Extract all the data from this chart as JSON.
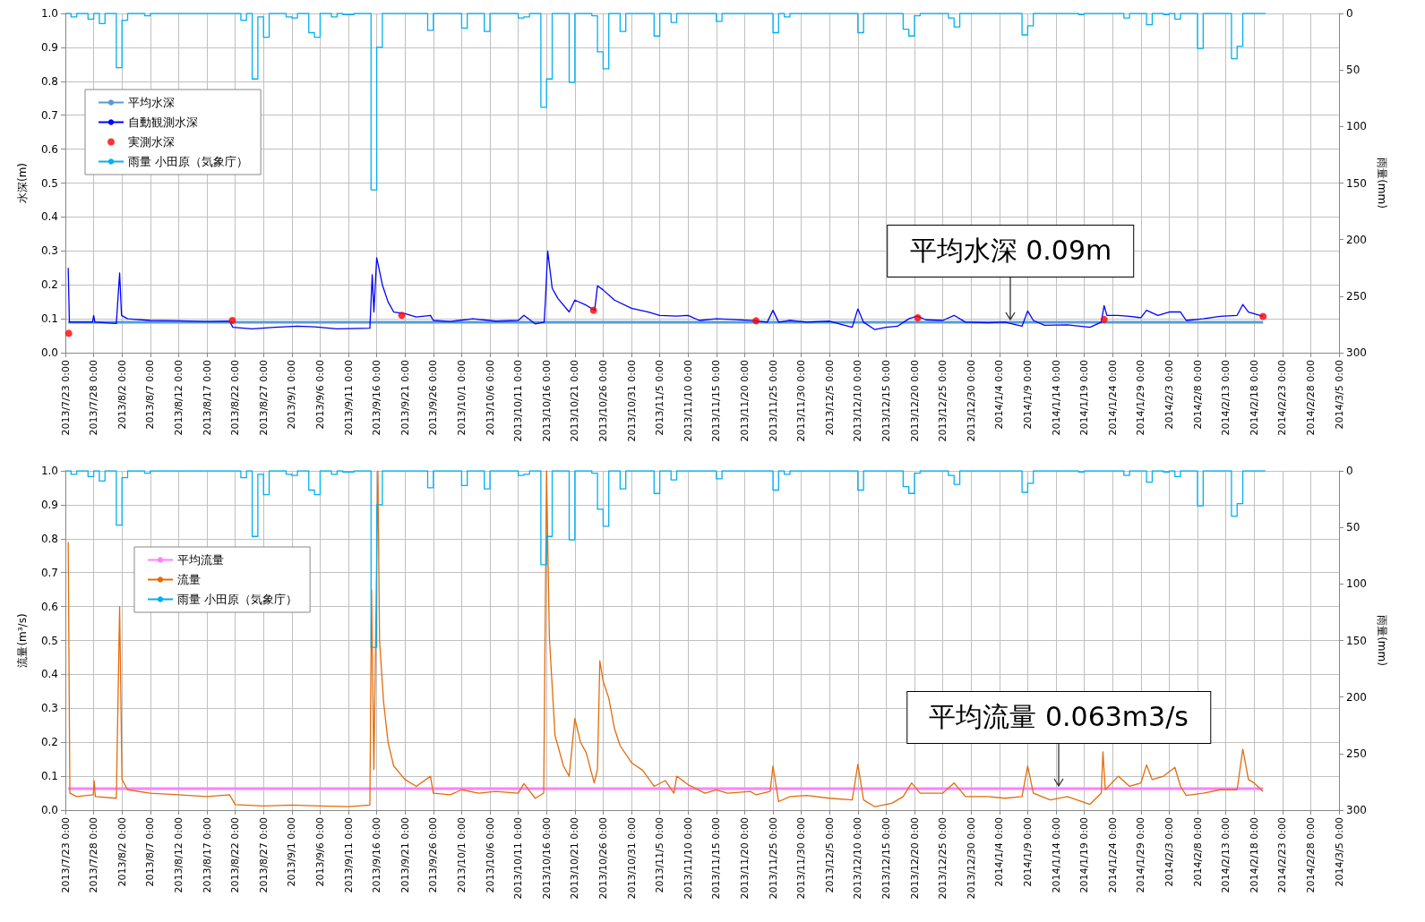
{
  "chart_data": [
    {
      "type": "line",
      "ylabel": "水深(m)",
      "y2label": "雨量(mm)",
      "grid": true,
      "legend": "top left",
      "xlim": [
        "2013-07-23",
        "2014-03-05"
      ],
      "xticks": [
        {
          "value": "2013-07-23",
          "label": "2013/7/23 0:00"
        },
        {
          "value": "2013-07-28",
          "label": "2013/7/28 0:00"
        },
        {
          "value": "2013-08-02",
          "label": "2013/8/2 0:00"
        },
        {
          "value": "2013-08-07",
          "label": "2013/8/7 0:00"
        },
        {
          "value": "2013-08-12",
          "label": "2013/8/12 0:00"
        },
        {
          "value": "2013-08-17",
          "label": "2013/8/17 0:00"
        },
        {
          "value": "2013-08-22",
          "label": "2013/8/22 0:00"
        },
        {
          "value": "2013-08-27",
          "label": "2013/8/27 0:00"
        },
        {
          "value": "2013-09-01",
          "label": "2013/9/1 0:00"
        },
        {
          "value": "2013-09-06",
          "label": "2013/9/6 0:00"
        },
        {
          "value": "2013-09-11",
          "label": "2013/9/11 0:00"
        },
        {
          "value": "2013-09-16",
          "label": "2013/9/16 0:00"
        },
        {
          "value": "2013-09-21",
          "label": "2013/9/21 0:00"
        },
        {
          "value": "2013-09-26",
          "label": "2013/9/26 0:00"
        },
        {
          "value": "2013-10-01",
          "label": "2013/10/1 0:00"
        },
        {
          "value": "2013-10-06",
          "label": "2013/10/6 0:00"
        },
        {
          "value": "2013-10-11",
          "label": "2013/10/11 0:00"
        },
        {
          "value": "2013-10-16",
          "label": "2013/10/16 0:00"
        },
        {
          "value": "2013-10-21",
          "label": "2013/10/21 0:00"
        },
        {
          "value": "2013-10-26",
          "label": "2013/10/26 0:00"
        },
        {
          "value": "2013-10-31",
          "label": "2013/10/31 0:00"
        },
        {
          "value": "2013-11-05",
          "label": "2013/11/5 0:00"
        },
        {
          "value": "2013-11-10",
          "label": "2013/11/10 0:00"
        },
        {
          "value": "2013-11-15",
          "label": "2013/11/15 0:00"
        },
        {
          "value": "2013-11-20",
          "label": "2013/11/20 0:00"
        },
        {
          "value": "2013-11-25",
          "label": "2013/11/25 0:00"
        },
        {
          "value": "2013-11-30",
          "label": "2013/11/30 0:00"
        },
        {
          "value": "2013-12-05",
          "label": "2013/12/5 0:00"
        },
        {
          "value": "2013-12-10",
          "label": "2013/12/10 0:00"
        },
        {
          "value": "2013-12-15",
          "label": "2013/12/15 0:00"
        },
        {
          "value": "2013-12-20",
          "label": "2013/12/20 0:00"
        },
        {
          "value": "2013-12-25",
          "label": "2013/12/25 0:00"
        },
        {
          "value": "2013-12-30",
          "label": "2013/12/30 0:00"
        },
        {
          "value": "2014-01-04",
          "label": "2014/1/4 0:00"
        },
        {
          "value": "2014-01-09",
          "label": "2014/1/9 0:00"
        },
        {
          "value": "2014-01-14",
          "label": "2014/1/14 0:00"
        },
        {
          "value": "2014-01-19",
          "label": "2014/1/19 0:00"
        },
        {
          "value": "2014-01-24",
          "label": "2014/1/24 0:00"
        },
        {
          "value": "2014-01-29",
          "label": "2014/1/29 0:00"
        },
        {
          "value": "2014-02-03",
          "label": "2014/2/3 0:00"
        },
        {
          "value": "2014-02-08",
          "label": "2014/2/8 0:00"
        },
        {
          "value": "2014-02-13",
          "label": "2014/2/13 0:00"
        },
        {
          "value": "2014-02-18",
          "label": "2014/2/18 0:00"
        },
        {
          "value": "2014-02-23",
          "label": "2014/2/23 0:00"
        },
        {
          "value": "2014-02-28",
          "label": "2014/2/28 0:00"
        },
        {
          "value": "2014-03-05",
          "label": "2014/3/5 0:00"
        }
      ],
      "ylim": [
        0,
        1
      ],
      "yticks": [
        {
          "value": 0,
          "label": "0.0"
        },
        {
          "value": 0.1,
          "label": "0.1"
        },
        {
          "value": 0.2,
          "label": "0.2"
        },
        {
          "value": 0.3,
          "label": "0.3"
        },
        {
          "value": 0.4,
          "label": "0.4"
        },
        {
          "value": 0.5,
          "label": "0.5"
        },
        {
          "value": 0.6,
          "label": "0.6"
        },
        {
          "value": 0.7,
          "label": "0.7"
        },
        {
          "value": 0.8,
          "label": "0.8"
        },
        {
          "value": 0.9,
          "label": "0.9"
        },
        {
          "value": 1,
          "label": "1.0"
        }
      ],
      "y2lim": [
        300,
        0
      ],
      "y2ticks": [
        0,
        50,
        100,
        150,
        200,
        250,
        300
      ],
      "annotations": [
        {
          "text": "平均水深 0.09m",
          "x": "2014-01-06",
          "y": 0.09
        }
      ],
      "series": [
        {
          "name": "平均水深",
          "type": "line",
          "color": "#5b9bd5",
          "x": [
            "2013-07-23T12:00",
            "2014-02-19T14:00"
          ],
          "values": [
            0.09,
            0.09
          ]
        },
        {
          "name": "自動観測水深",
          "type": "line",
          "color": "#0000ff",
          "x": [
            "2013-07-23T12:00",
            "2013-07-23T17:00",
            "2013-07-26",
            "2013-07-27T19:00",
            "2013-07-28",
            "2013-07-28T05:00",
            "2013-08-01",
            "2013-08-01T14:00",
            "2013-08-01T22:00",
            "2013-08-03",
            "2013-08-07",
            "2013-08-12",
            "2013-08-17",
            "2013-08-21",
            "2013-08-21T14:00",
            "2013-08-25",
            "2013-08-29",
            "2013-09-02",
            "2013-09-05",
            "2013-09-09",
            "2013-09-14T19:00",
            "2013-09-15T05:00",
            "2013-09-15T12:00",
            "2013-09-16",
            "2013-09-17",
            "2013-09-18",
            "2013-09-19",
            "2013-09-21",
            "2013-09-23",
            "2013-09-25T12:00",
            "2013-09-26",
            "2013-09-29",
            "2013-10-03",
            "2013-10-07",
            "2013-10-11",
            "2013-10-12",
            "2013-10-14",
            "2013-10-15T14:00",
            "2013-10-15T19:00",
            "2013-10-16T05:00",
            "2013-10-17",
            "2013-10-18",
            "2013-10-20",
            "2013-10-21",
            "2013-10-23",
            "2013-10-24T12:00",
            "2013-10-25",
            "2013-10-26",
            "2013-10-28",
            "2013-10-31",
            "2013-11-03",
            "2013-11-05",
            "2013-11-08",
            "2013-11-10",
            "2013-11-12",
            "2013-11-15",
            "2013-11-18",
            "2013-11-22",
            "2013-11-24",
            "2013-11-25",
            "2013-11-26",
            "2013-11-28",
            "2013-12-01",
            "2013-12-05",
            "2013-12-09",
            "2013-12-10",
            "2013-12-11",
            "2013-12-13",
            "2013-12-15",
            "2013-12-17",
            "2013-12-19",
            "2013-12-20T12:00",
            "2013-12-22",
            "2013-12-25",
            "2013-12-27",
            "2013-12-29",
            "2014-01-02",
            "2014-01-05",
            "2014-01-08",
            "2014-01-09",
            "2014-01-10",
            "2014-01-12",
            "2014-01-16",
            "2014-01-20",
            "2014-01-22",
            "2014-01-22T12:00",
            "2014-01-23",
            "2014-01-25",
            "2014-01-27",
            "2014-01-29",
            "2014-01-30",
            "2014-02-01",
            "2014-02-03",
            "2014-02-05",
            "2014-02-06",
            "2014-02-09",
            "2014-02-12",
            "2014-02-15",
            "2014-02-16",
            "2014-02-17",
            "2014-02-19T14:00"
          ],
          "values": [
            0.25,
            0.09,
            0.09,
            0.09,
            0.11,
            0.09,
            0.086,
            0.235,
            0.11,
            0.1,
            0.095,
            0.094,
            0.092,
            0.093,
            0.075,
            0.07,
            0.075,
            0.078,
            0.076,
            0.07,
            0.072,
            0.23,
            0.12,
            0.28,
            0.2,
            0.15,
            0.12,
            0.115,
            0.105,
            0.11,
            0.095,
            0.092,
            0.1,
            0.093,
            0.095,
            0.11,
            0.085,
            0.09,
            0.15,
            0.3,
            0.19,
            0.16,
            0.12,
            0.155,
            0.14,
            0.125,
            0.197,
            0.185,
            0.155,
            0.131,
            0.12,
            0.11,
            0.108,
            0.11,
            0.095,
            0.1,
            0.098,
            0.094,
            0.09,
            0.125,
            0.09,
            0.095,
            0.09,
            0.093,
            0.075,
            0.129,
            0.09,
            0.068,
            0.075,
            0.078,
            0.1,
            0.108,
            0.097,
            0.095,
            0.11,
            0.09,
            0.088,
            0.09,
            0.078,
            0.123,
            0.095,
            0.081,
            0.082,
            0.075,
            0.09,
            0.139,
            0.11,
            0.11,
            0.107,
            0.103,
            0.125,
            0.11,
            0.12,
            0.12,
            0.095,
            0.1,
            0.107,
            0.11,
            0.142,
            0.12,
            0.107
          ]
        },
        {
          "name": "実測水深",
          "type": "scatter",
          "marker": "circle",
          "color": "#ff0000",
          "x": [
            "2013-07-23T14:00",
            "2013-08-21T12:00",
            "2013-09-20T10:00",
            "2013-10-24T07:00",
            "2013-11-22",
            "2013-12-20T14:00",
            "2014-01-22T12:00",
            "2014-02-19T14:00"
          ],
          "values": [
            0.057,
            0.095,
            0.11,
            0.125,
            0.094,
            0.103,
            0.098,
            0.107
          ]
        },
        {
          "name": "雨量 小田原（気象庁）",
          "type": "step",
          "axis": "y2",
          "color": "#00b0f0",
          "x": [
            "2013-07-23",
            "2013-07-24",
            "2013-07-25",
            "2013-07-27",
            "2013-07-28",
            "2013-07-29",
            "2013-07-30",
            "2013-08-01",
            "2013-08-02",
            "2013-08-03",
            "2013-08-06",
            "2013-08-07",
            "2013-08-23",
            "2013-08-24",
            "2013-08-25",
            "2013-08-26",
            "2013-08-27",
            "2013-08-28",
            "2013-08-31",
            "2013-09-01",
            "2013-09-02",
            "2013-09-04",
            "2013-09-05",
            "2013-09-06",
            "2013-09-08",
            "2013-09-09",
            "2013-09-10",
            "2013-09-11",
            "2013-09-12",
            "2013-09-15",
            "2013-09-16",
            "2013-09-17",
            "2013-09-25",
            "2013-09-26",
            "2013-10-01",
            "2013-10-02",
            "2013-10-05",
            "2013-10-06",
            "2013-10-11",
            "2013-10-12",
            "2013-10-13",
            "2013-10-15",
            "2013-10-16",
            "2013-10-17",
            "2013-10-20",
            "2013-10-21",
            "2013-10-24",
            "2013-10-25",
            "2013-10-26",
            "2013-10-27",
            "2013-10-29",
            "2013-10-30",
            "2013-11-04",
            "2013-11-05",
            "2013-11-07",
            "2013-11-08",
            "2013-11-15",
            "2013-11-16",
            "2013-11-25",
            "2013-11-26",
            "2013-11-27",
            "2013-11-28",
            "2013-12-10",
            "2013-12-11",
            "2013-12-18",
            "2013-12-19",
            "2013-12-20",
            "2013-12-21",
            "2013-12-26",
            "2013-12-27",
            "2013-12-28",
            "2014-01-08",
            "2014-01-09",
            "2014-01-10",
            "2014-01-18",
            "2014-01-19",
            "2014-01-26",
            "2014-01-27",
            "2014-01-30",
            "2014-01-31",
            "2014-02-02",
            "2014-02-03",
            "2014-02-04",
            "2014-02-05",
            "2014-02-08",
            "2014-02-09",
            "2014-02-14",
            "2014-02-15",
            "2014-02-16",
            "2014-02-20"
          ],
          "values": [
            0,
            3,
            0,
            5,
            0,
            9,
            0,
            48,
            6,
            0,
            2,
            0,
            6,
            0,
            58,
            3,
            21,
            0,
            3,
            4,
            0,
            17,
            21,
            0,
            3,
            0,
            1,
            1,
            0,
            156,
            30,
            0,
            15,
            0,
            13,
            0,
            16,
            0,
            4,
            3,
            0,
            83,
            58,
            0,
            61,
            0,
            2,
            34,
            49,
            0,
            16,
            0,
            20,
            0,
            8,
            0,
            7,
            0,
            17,
            0,
            3,
            0,
            17,
            0,
            14,
            20,
            2,
            0,
            4,
            12,
            0,
            19,
            11,
            0,
            1,
            0,
            4,
            0,
            10,
            0,
            1,
            0,
            5,
            0,
            31,
            0,
            40,
            29,
            0,
            0
          ]
        }
      ]
    },
    {
      "type": "line",
      "ylabel": "流量(m³/s)",
      "y2label": "雨量(mm)",
      "grid": true,
      "legend": "top left",
      "xlim": [
        "2013-07-23",
        "2014-03-05"
      ],
      "xticks": [
        {
          "value": "2013-07-23",
          "label": "2013/7/23 0:00"
        },
        {
          "value": "2013-07-28",
          "label": "2013/7/28 0:00"
        },
        {
          "value": "2013-08-02",
          "label": "2013/8/2 0:00"
        },
        {
          "value": "2013-08-07",
          "label": "2013/8/7 0:00"
        },
        {
          "value": "2013-08-12",
          "label": "2013/8/12 0:00"
        },
        {
          "value": "2013-08-17",
          "label": "2013/8/17 0:00"
        },
        {
          "value": "2013-08-22",
          "label": "2013/8/22 0:00"
        },
        {
          "value": "2013-08-27",
          "label": "2013/8/27 0:00"
        },
        {
          "value": "2013-09-01",
          "label": "2013/9/1 0:00"
        },
        {
          "value": "2013-09-06",
          "label": "2013/9/6 0:00"
        },
        {
          "value": "2013-09-11",
          "label": "2013/9/11 0:00"
        },
        {
          "value": "2013-09-16",
          "label": "2013/9/16 0:00"
        },
        {
          "value": "2013-09-21",
          "label": "2013/9/21 0:00"
        },
        {
          "value": "2013-09-26",
          "label": "2013/9/26 0:00"
        },
        {
          "value": "2013-10-01",
          "label": "2013/10/1 0:00"
        },
        {
          "value": "2013-10-06",
          "label": "2013/10/6 0:00"
        },
        {
          "value": "2013-10-11",
          "label": "2013/10/11 0:00"
        },
        {
          "value": "2013-10-16",
          "label": "2013/10/16 0:00"
        },
        {
          "value": "2013-10-21",
          "label": "2013/10/21 0:00"
        },
        {
          "value": "2013-10-26",
          "label": "2013/10/26 0:00"
        },
        {
          "value": "2013-10-31",
          "label": "2013/10/31 0:00"
        },
        {
          "value": "2013-11-05",
          "label": "2013/11/5 0:00"
        },
        {
          "value": "2013-11-10",
          "label": "2013/11/10 0:00"
        },
        {
          "value": "2013-11-15",
          "label": "2013/11/15 0:00"
        },
        {
          "value": "2013-11-20",
          "label": "2013/11/20 0:00"
        },
        {
          "value": "2013-11-25",
          "label": "2013/11/25 0:00"
        },
        {
          "value": "2013-11-30",
          "label": "2013/11/30 0:00"
        },
        {
          "value": "2013-12-05",
          "label": "2013/12/5 0:00"
        },
        {
          "value": "2013-12-10",
          "label": "2013/12/10 0:00"
        },
        {
          "value": "2013-12-15",
          "label": "2013/12/15 0:00"
        },
        {
          "value": "2013-12-20",
          "label": "2013/12/20 0:00"
        },
        {
          "value": "2013-12-25",
          "label": "2013/12/25 0:00"
        },
        {
          "value": "2013-12-30",
          "label": "2013/12/30 0:00"
        },
        {
          "value": "2014-01-04",
          "label": "2014/1/4 0:00"
        },
        {
          "value": "2014-01-09",
          "label": "2014/1/9 0:00"
        },
        {
          "value": "2014-01-14",
          "label": "2014/1/14 0:00"
        },
        {
          "value": "2014-01-19",
          "label": "2014/1/19 0:00"
        },
        {
          "value": "2014-01-24",
          "label": "2014/1/24 0:00"
        },
        {
          "value": "2014-01-29",
          "label": "2014/1/29 0:00"
        },
        {
          "value": "2014-02-03",
          "label": "2014/2/3 0:00"
        },
        {
          "value": "2014-02-08",
          "label": "2014/2/8 0:00"
        },
        {
          "value": "2014-02-13",
          "label": "2014/2/13 0:00"
        },
        {
          "value": "2014-02-18",
          "label": "2014/2/18 0:00"
        },
        {
          "value": "2014-02-23",
          "label": "2014/2/23 0:00"
        },
        {
          "value": "2014-02-28",
          "label": "2014/2/28 0:00"
        },
        {
          "value": "2014-03-05",
          "label": "2014/3/5 0:00"
        }
      ],
      "ylim": [
        0,
        1
      ],
      "yticks": [
        {
          "value": 0,
          "label": "0.0"
        },
        {
          "value": 0.1,
          "label": "0.1"
        },
        {
          "value": 0.2,
          "label": "0.2"
        },
        {
          "value": 0.3,
          "label": "0.3"
        },
        {
          "value": 0.4,
          "label": "0.4"
        },
        {
          "value": 0.5,
          "label": "0.5"
        },
        {
          "value": 0.6,
          "label": "0.6"
        },
        {
          "value": 0.7,
          "label": "0.7"
        },
        {
          "value": 0.8,
          "label": "0.8"
        },
        {
          "value": 0.9,
          "label": "0.9"
        },
        {
          "value": 1,
          "label": "1.0"
        }
      ],
      "y2lim": [
        300,
        0
      ],
      "y2ticks": [
        0,
        50,
        100,
        150,
        200,
        250,
        300
      ],
      "annotations": [
        {
          "text": "平均流量 0.063m3/s",
          "x": "2014-01-14T12:00",
          "y": 0.063
        }
      ],
      "series": [
        {
          "name": "平均流量",
          "type": "line",
          "color": "#ff80ff",
          "x": [
            "2013-07-23T12:00",
            "2014-02-19T14:00"
          ],
          "values": [
            0.063,
            0.063
          ]
        },
        {
          "name": "流量",
          "type": "line",
          "color": "#e46c0a",
          "x": [
            "2013-07-23T12:00",
            "2013-07-23T19:00",
            "2013-07-25",
            "2013-07-27T22:00",
            "2013-07-28T02:00",
            "2013-07-28T07:00",
            "2013-08-01",
            "2013-08-01T14:00",
            "2013-08-02",
            "2013-08-03",
            "2013-08-07",
            "2013-08-12",
            "2013-08-17",
            "2013-08-21",
            "2013-08-22",
            "2013-08-27",
            "2013-09-01",
            "2013-09-06",
            "2013-09-11",
            "2013-09-14T19:00",
            "2013-09-15T02:00",
            "2013-09-15T12:00",
            "2013-09-16T05:00",
            "2013-09-16T12:00",
            "2013-09-17T05:00",
            "2013-09-18",
            "2013-09-19",
            "2013-09-21",
            "2013-09-23",
            "2013-09-25T12:00",
            "2013-09-26",
            "2013-09-29",
            "2013-10-01",
            "2013-10-04",
            "2013-10-07",
            "2013-10-11",
            "2013-10-12",
            "2013-10-14",
            "2013-10-15T12:00",
            "2013-10-16",
            "2013-10-16T12:00",
            "2013-10-17T12:00",
            "2013-10-19",
            "2013-10-20",
            "2013-10-21",
            "2013-10-22",
            "2013-10-23",
            "2013-10-24T10:00",
            "2013-10-25",
            "2013-10-25T10:00",
            "2013-10-26",
            "2013-10-27",
            "2013-10-28",
            "2013-10-29",
            "2013-10-31",
            "2013-11-02",
            "2013-11-04",
            "2013-11-06",
            "2013-11-07T12:00",
            "2013-11-08",
            "2013-11-10",
            "2013-11-13",
            "2013-11-15",
            "2013-11-17",
            "2013-11-21",
            "2013-11-22",
            "2013-11-24T12:00",
            "2013-11-25",
            "2013-11-26",
            "2013-11-28",
            "2013-12-01",
            "2013-12-05",
            "2013-12-09",
            "2013-12-10",
            "2013-12-11",
            "2013-12-13",
            "2013-12-16",
            "2013-12-18",
            "2013-12-19T12:00",
            "2013-12-21",
            "2013-12-25",
            "2013-12-27",
            "2013-12-29",
            "2014-01-02",
            "2014-01-05",
            "2014-01-08",
            "2014-01-09",
            "2014-01-10",
            "2014-01-13",
            "2014-01-16",
            "2014-01-20",
            "2014-01-22",
            "2014-01-22T07:00",
            "2014-01-22T17:00",
            "2014-01-25",
            "2014-01-27",
            "2014-01-29",
            "2014-01-30",
            "2014-01-31",
            "2014-02-02",
            "2014-02-04",
            "2014-02-05",
            "2014-02-06",
            "2014-02-09",
            "2014-02-12",
            "2014-02-15",
            "2014-02-16",
            "2014-02-17",
            "2014-02-18",
            "2014-02-19T14:00"
          ],
          "values": [
            0.79,
            0.05,
            0.04,
            0.045,
            0.087,
            0.04,
            0.035,
            0.6,
            0.09,
            0.06,
            0.05,
            0.045,
            0.04,
            0.045,
            0.016,
            0.012,
            0.015,
            0.012,
            0.01,
            0.015,
            0.65,
            0.12,
            1.0,
            0.5,
            0.32,
            0.2,
            0.13,
            0.09,
            0.07,
            0.1,
            0.05,
            0.045,
            0.06,
            0.05,
            0.055,
            0.05,
            0.078,
            0.035,
            0.05,
            1.0,
            0.51,
            0.22,
            0.13,
            0.1,
            0.27,
            0.2,
            0.17,
            0.08,
            0.12,
            0.44,
            0.38,
            0.33,
            0.24,
            0.19,
            0.14,
            0.117,
            0.07,
            0.087,
            0.05,
            0.1,
            0.075,
            0.05,
            0.06,
            0.05,
            0.055,
            0.045,
            0.055,
            0.13,
            0.025,
            0.04,
            0.043,
            0.035,
            0.03,
            0.135,
            0.03,
            0.01,
            0.02,
            0.04,
            0.08,
            0.05,
            0.05,
            0.08,
            0.04,
            0.04,
            0.035,
            0.04,
            0.13,
            0.05,
            0.03,
            0.04,
            0.017,
            0.05,
            0.172,
            0.06,
            0.1,
            0.07,
            0.08,
            0.133,
            0.09,
            0.1,
            0.126,
            0.07,
            0.043,
            0.05,
            0.06,
            0.06,
            0.18,
            0.09,
            0.08,
            0.055
          ]
        },
        {
          "name": "雨量 小田原（気象庁）",
          "type": "step",
          "axis": "y2",
          "color": "#00b0f0",
          "x": [
            "2013-07-23",
            "2013-07-24",
            "2013-07-25",
            "2013-07-27",
            "2013-07-28",
            "2013-07-29",
            "2013-07-30",
            "2013-08-01",
            "2013-08-02",
            "2013-08-03",
            "2013-08-06",
            "2013-08-07",
            "2013-08-23",
            "2013-08-24",
            "2013-08-25",
            "2013-08-26",
            "2013-08-27",
            "2013-08-28",
            "2013-08-31",
            "2013-09-01",
            "2013-09-02",
            "2013-09-04",
            "2013-09-05",
            "2013-09-06",
            "2013-09-08",
            "2013-09-09",
            "2013-09-10",
            "2013-09-11",
            "2013-09-12",
            "2013-09-15",
            "2013-09-16",
            "2013-09-17",
            "2013-09-25",
            "2013-09-26",
            "2013-10-01",
            "2013-10-02",
            "2013-10-05",
            "2013-10-06",
            "2013-10-11",
            "2013-10-12",
            "2013-10-13",
            "2013-10-15",
            "2013-10-16",
            "2013-10-17",
            "2013-10-20",
            "2013-10-21",
            "2013-10-24",
            "2013-10-25",
            "2013-10-26",
            "2013-10-27",
            "2013-10-29",
            "2013-10-30",
            "2013-11-04",
            "2013-11-05",
            "2013-11-07",
            "2013-11-08",
            "2013-11-15",
            "2013-11-16",
            "2013-11-25",
            "2013-11-26",
            "2013-11-27",
            "2013-11-28",
            "2013-12-10",
            "2013-12-11",
            "2013-12-18",
            "2013-12-19",
            "2013-12-20",
            "2013-12-21",
            "2013-12-26",
            "2013-12-27",
            "2013-12-28",
            "2014-01-08",
            "2014-01-09",
            "2014-01-10",
            "2014-01-18",
            "2014-01-19",
            "2014-01-26",
            "2014-01-27",
            "2014-01-30",
            "2014-01-31",
            "2014-02-02",
            "2014-02-03",
            "2014-02-04",
            "2014-02-05",
            "2014-02-08",
            "2014-02-09",
            "2014-02-14",
            "2014-02-15",
            "2014-02-16",
            "2014-02-20"
          ],
          "values": [
            0,
            3,
            0,
            5,
            0,
            9,
            0,
            48,
            6,
            0,
            2,
            0,
            6,
            0,
            58,
            3,
            21,
            0,
            3,
            4,
            0,
            17,
            21,
            0,
            3,
            0,
            1,
            1,
            0,
            156,
            30,
            0,
            15,
            0,
            13,
            0,
            16,
            0,
            4,
            3,
            0,
            83,
            58,
            0,
            61,
            0,
            2,
            34,
            49,
            0,
            16,
            0,
            20,
            0,
            8,
            0,
            7,
            0,
            17,
            0,
            3,
            0,
            17,
            0,
            14,
            20,
            2,
            0,
            4,
            12,
            0,
            19,
            11,
            0,
            1,
            0,
            4,
            0,
            10,
            0,
            1,
            0,
            5,
            0,
            31,
            0,
            40,
            29,
            0,
            0
          ]
        }
      ]
    }
  ]
}
